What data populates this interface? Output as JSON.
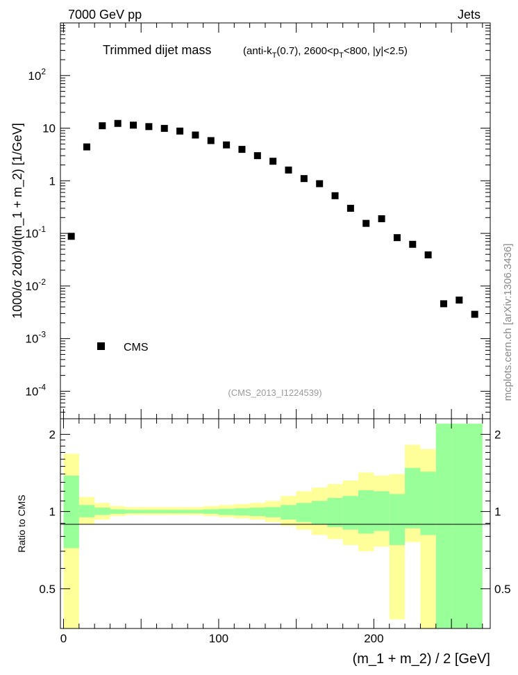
{
  "header": {
    "left_title": "7000 GeV pp",
    "right_title": "Jets"
  },
  "watermark": {
    "side_text": "mcplots.cern.ch [arXiv:1306.3436]",
    "analysis_id": "(CMS_2013_I1224539)"
  },
  "colors": {
    "band_outer": "#ffff99",
    "band_inner": "#99ff99",
    "marker": "#000000",
    "id_text": "#999999",
    "side_text": "#888888"
  },
  "chart_data": [
    {
      "type": "scatter",
      "title": "Trimmed dijet mass",
      "subtitle": {
        "p1": "(anti-k",
        "s1": "T",
        "p2": "(0.7), 2600<p",
        "s2": "T",
        "p3": "<800, |y|<2.5)"
      },
      "ylabel": "1000/σ 2dσ)/d(m_1 + m_2) [1/GeV]",
      "yscale": "log",
      "ylim": [
        3e-05,
        1000
      ],
      "xlim": [
        -2,
        275
      ],
      "y_ticks": [
        {
          "base": "10",
          "exp": "-4",
          "value": 0.0001
        },
        {
          "base": "10",
          "exp": "-3",
          "value": 0.001
        },
        {
          "base": "10",
          "exp": "-2",
          "value": 0.01
        },
        {
          "base": "10",
          "exp": "-1",
          "value": 0.1
        },
        {
          "base": "1",
          "exp": "",
          "value": 1
        },
        {
          "base": "10",
          "exp": "",
          "value": 10
        },
        {
          "base": "10",
          "exp": "2",
          "value": 100
        }
      ],
      "legend": {
        "label": "CMS",
        "position": "bottom-left"
      },
      "series": [
        {
          "name": "CMS",
          "x": [
            5,
            15,
            25,
            35,
            45,
            55,
            65,
            75,
            85,
            95,
            105,
            115,
            125,
            135,
            145,
            155,
            165,
            175,
            185,
            195,
            205,
            215,
            225,
            235,
            245,
            255,
            265
          ],
          "y": [
            0.088,
            4.4,
            11.1,
            12.3,
            11.4,
            10.7,
            9.9,
            8.8,
            7.4,
            5.8,
            4.8,
            3.95,
            3.0,
            2.35,
            1.6,
            1.1,
            0.88,
            0.52,
            0.3,
            0.155,
            0.19,
            0.083,
            0.062,
            0.039,
            0.0046,
            0.0054,
            0.0029
          ]
        }
      ]
    },
    {
      "type": "area",
      "ylabel": "Ratio to CMS",
      "xlabel": "(m_1 + m_2) / 2 [GeV]",
      "ylim": [
        0.35,
        2.3
      ],
      "xlim": [
        -2,
        275
      ],
      "x_ticks": [
        "0",
        "100",
        "200"
      ],
      "x_tick_values": [
        0,
        100,
        200
      ],
      "y_ticks": [
        "0.5",
        "1",
        "2"
      ],
      "y_tick_values": [
        0.5,
        1,
        2
      ],
      "bin_edges": [
        0,
        10,
        20,
        30,
        40,
        50,
        60,
        70,
        80,
        90,
        100,
        110,
        120,
        130,
        140,
        150,
        160,
        170,
        180,
        190,
        200,
        210,
        220,
        230,
        240,
        250,
        260,
        270
      ],
      "series": [
        {
          "name": "outer band",
          "low": [
            0.35,
            0.89,
            0.93,
            0.96,
            0.97,
            0.97,
            0.97,
            0.97,
            0.97,
            0.96,
            0.95,
            0.94,
            0.93,
            0.91,
            0.88,
            0.85,
            0.81,
            0.78,
            0.74,
            0.7,
            0.73,
            0.38,
            0.76,
            0.35,
            0.35,
            0.35,
            0.35
          ],
          "high": [
            1.68,
            1.14,
            1.08,
            1.05,
            1.04,
            1.04,
            1.04,
            1.04,
            1.04,
            1.05,
            1.06,
            1.07,
            1.08,
            1.1,
            1.15,
            1.2,
            1.24,
            1.28,
            1.32,
            1.42,
            1.38,
            1.4,
            1.82,
            1.75,
            2.2,
            2.2,
            2.2
          ]
        },
        {
          "name": "inner band",
          "low": [
            0.72,
            0.95,
            0.97,
            0.98,
            0.985,
            0.985,
            0.985,
            0.985,
            0.985,
            0.98,
            0.97,
            0.965,
            0.96,
            0.95,
            0.93,
            0.91,
            0.89,
            0.87,
            0.85,
            0.82,
            0.84,
            0.74,
            0.86,
            0.81,
            0.35,
            0.35,
            0.35
          ],
          "high": [
            1.38,
            1.06,
            1.035,
            1.02,
            1.015,
            1.015,
            1.015,
            1.015,
            1.015,
            1.02,
            1.025,
            1.03,
            1.035,
            1.04,
            1.06,
            1.08,
            1.1,
            1.13,
            1.15,
            1.21,
            1.2,
            1.17,
            1.48,
            1.43,
            2.2,
            2.2,
            2.2
          ]
        }
      ]
    }
  ]
}
